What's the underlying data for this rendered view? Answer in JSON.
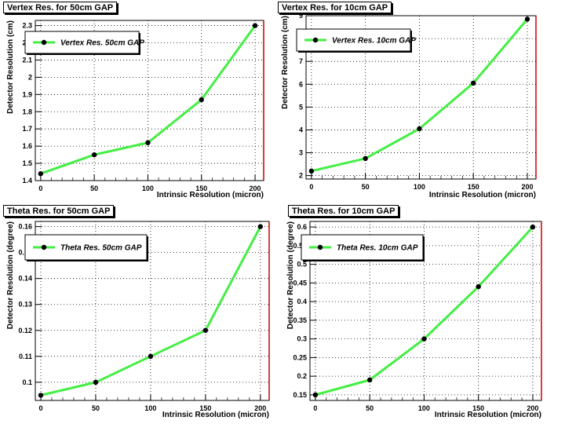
{
  "colors": {
    "line": "#44ee44",
    "marker": "#000000",
    "frame": "#000000",
    "right_axis": "#cc0000",
    "grid": "#000000"
  },
  "chart_data": [
    {
      "type": "line",
      "title": "Vertex Res. for 50cm GAP",
      "xlabel": "Intrinsic Resolution (micron)",
      "ylabel": "Detector Resolution (cm)",
      "xlim": [
        -5,
        208
      ],
      "ylim": [
        1.4,
        2.33
      ],
      "xticks": [
        "0",
        "50",
        "100",
        "150",
        "200"
      ],
      "yticks": [
        "1.4",
        "1.5",
        "1.6",
        "1.7",
        "1.8",
        "1.9",
        "2",
        "2.1",
        "2.2",
        "2.3"
      ],
      "ytick_values": [
        1.4,
        1.5,
        1.6,
        1.7,
        1.8,
        1.9,
        2.0,
        2.1,
        2.2,
        2.3
      ],
      "grid": true,
      "legend": "top-left",
      "series": [
        {
          "name": "Vertex Res. 50cm GAP",
          "x": [
            0,
            50,
            100,
            150,
            200
          ],
          "y": [
            1.44,
            1.55,
            1.62,
            1.87,
            2.3
          ]
        }
      ]
    },
    {
      "type": "line",
      "title": "Vertex Res. for 10cm GAP",
      "xlabel": "Intrinsic Resolution (micron)",
      "ylabel": "Detector Resolution (cm)",
      "xlim": [
        -5,
        208
      ],
      "ylim": [
        1.85,
        9.0
      ],
      "xticks": [
        "0",
        "50",
        "100",
        "150",
        "200"
      ],
      "yticks": [
        "2",
        "3",
        "4",
        "5",
        "6",
        "7",
        "8",
        "9"
      ],
      "ytick_values": [
        2,
        3,
        4,
        5,
        6,
        7,
        8,
        9
      ],
      "grid": true,
      "legend": "top-left",
      "series": [
        {
          "name": "Vertex Res. 10cm GAP",
          "x": [
            0,
            50,
            100,
            150,
            200
          ],
          "y": [
            2.2,
            2.75,
            4.05,
            6.05,
            8.85
          ]
        }
      ]
    },
    {
      "type": "line",
      "title": "Theta Res. for 50cm GAP",
      "xlabel": "Intrinsic Resolution (micron)",
      "ylabel": "Detector Resolution (degree)",
      "xlim": [
        -5,
        208
      ],
      "ylim": [
        0.093,
        0.162
      ],
      "xticks": [
        "0",
        "50",
        "100",
        "150",
        "200"
      ],
      "yticks": [
        "0.1",
        "0.11",
        "0.12",
        "0.13",
        "0.14",
        "0.15",
        "0.16"
      ],
      "ytick_values": [
        0.1,
        0.11,
        0.12,
        0.13,
        0.14,
        0.15,
        0.16
      ],
      "grid": true,
      "legend": "top-left",
      "series": [
        {
          "name": "Theta Res. 50cm GAP",
          "x": [
            0,
            50,
            100,
            150,
            200
          ],
          "y": [
            0.095,
            0.1,
            0.11,
            0.12,
            0.16
          ]
        }
      ]
    },
    {
      "type": "line",
      "title": "Theta Res. for 10cm GAP",
      "xlabel": "Intrinsic Resolution (micron)",
      "ylabel": "Detector Resolution (degree)",
      "xlim": [
        -5,
        208
      ],
      "ylim": [
        0.135,
        0.615
      ],
      "xticks": [
        "0",
        "50",
        "100",
        "150",
        "200"
      ],
      "yticks": [
        "0.15",
        "0.2",
        "0.25",
        "0.3",
        "0.35",
        "0.4",
        "0.45",
        "0.5",
        "0.55",
        "0.6"
      ],
      "ytick_values": [
        0.15,
        0.2,
        0.25,
        0.3,
        0.35,
        0.4,
        0.45,
        0.5,
        0.55,
        0.6
      ],
      "grid": true,
      "legend": "top-left",
      "series": [
        {
          "name": "Theta Res. 10cm GAP",
          "x": [
            0,
            50,
            100,
            150,
            200
          ],
          "y": [
            0.15,
            0.19,
            0.3,
            0.44,
            0.6
          ]
        }
      ]
    }
  ]
}
